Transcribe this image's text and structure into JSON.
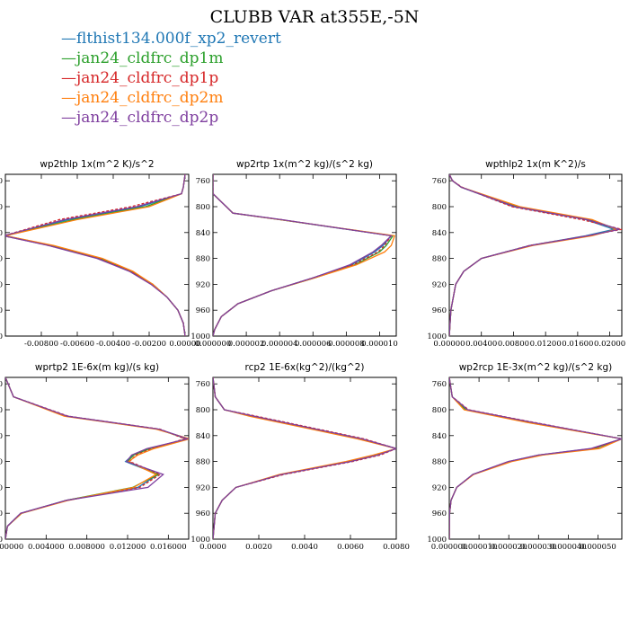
{
  "figure": {
    "title": "CLUBB VAR at355E,-5N"
  },
  "legend": [
    {
      "label": "flthist134.000f_xp2_revert",
      "color": "#1f77b4"
    },
    {
      "label": "jan24_cldfrc_dp1m",
      "color": "#2ca02c"
    },
    {
      "label": "jan24_cldfrc_dp1p",
      "color": "#d62728"
    },
    {
      "label": "jan24_cldfrc_dp2m",
      "color": "#ff7f0e"
    },
    {
      "label": "jan24_cldfrc_dp2p",
      "color": "#7f3f9f"
    }
  ],
  "chart_data": [
    {
      "type": "line",
      "title": "wp2thlp   1x(m^2 K)/s^2",
      "xlim": [
        -0.01,
        0.0002
      ],
      "ylim": [
        1000,
        750
      ],
      "xticks": [
        -0.008,
        -0.006,
        -0.004,
        -0.002,
        0.0
      ],
      "xtick_labels": [
        "-0.00800",
        "-0.00600",
        "-0.00400",
        "-0.00200",
        "0.00000"
      ],
      "yticks": [
        760,
        800,
        840,
        880,
        920,
        960,
        1000
      ],
      "y": [
        750,
        770,
        780,
        800,
        820,
        845,
        860,
        880,
        900,
        920,
        940,
        960,
        980,
        1000
      ],
      "series": [
        {
          "values": [
            0,
            -0.0001,
            -0.0002,
            -0.0025,
            -0.0065,
            -0.0101,
            -0.0075,
            -0.0048,
            -0.003,
            -0.0018,
            -0.001,
            -0.0004,
            -0.0001,
            0
          ]
        },
        {
          "values": [
            0,
            -0.0001,
            -0.0002,
            -0.0022,
            -0.0062,
            -0.01,
            -0.0074,
            -0.0047,
            -0.003,
            -0.0018,
            -0.001,
            -0.0004,
            -0.0001,
            0
          ]
        },
        {
          "values": [
            0,
            -0.0001,
            -0.0002,
            -0.003,
            -0.007,
            -0.0101,
            -0.0076,
            -0.0048,
            -0.003,
            -0.0018,
            -0.001,
            -0.0004,
            -0.0001,
            0
          ]
        },
        {
          "values": [
            0,
            -0.0001,
            -0.0002,
            -0.002,
            -0.006,
            -0.01,
            -0.0073,
            -0.0046,
            -0.0029,
            -0.0018,
            -0.001,
            -0.0004,
            -0.0001,
            0
          ]
        },
        {
          "values": [
            0,
            -0.0001,
            -0.0002,
            -0.0027,
            -0.0067,
            -0.0101,
            -0.0076,
            -0.0049,
            -0.0031,
            -0.0019,
            -0.001,
            -0.0004,
            -0.0001,
            0
          ]
        }
      ]
    },
    {
      "type": "line",
      "title": "wp2rtp   1x(m^2 kg)/(s^2 kg)",
      "xlim": [
        0.0,
        1.1e-05
      ],
      "ylim": [
        1000,
        750
      ],
      "xticks": [
        0.0,
        2e-06,
        4e-06,
        6e-06,
        8e-06,
        1e-05
      ],
      "xtick_labels": [
        "0.000000",
        "0.000002",
        "0.000004",
        "0.000006",
        "0.000008",
        "0.000010"
      ],
      "yticks": [
        760,
        800,
        840,
        880,
        920,
        960,
        1000
      ],
      "y": [
        750,
        780,
        800,
        810,
        820,
        845,
        860,
        870,
        890,
        910,
        930,
        950,
        970,
        990,
        1000
      ],
      "series": [
        {
          "values": [
            0,
            0,
            8e-07,
            1.2e-06,
            4e-06,
            1.07e-05,
            1.02e-05,
            9.7e-06,
            8.3e-06,
            6e-06,
            3.5e-06,
            1.5e-06,
            5e-07,
            1e-07,
            0
          ]
        },
        {
          "values": [
            0,
            0,
            8e-07,
            1.2e-06,
            4e-06,
            1.08e-05,
            1.04e-05,
            1e-05,
            8.5e-06,
            6.1e-06,
            3.5e-06,
            1.5e-06,
            5e-07,
            1e-07,
            0
          ]
        },
        {
          "values": [
            0,
            0,
            8e-07,
            1.2e-06,
            4.1e-06,
            1.07e-05,
            1.03e-05,
            9.9e-06,
            8.4e-06,
            6e-06,
            3.5e-06,
            1.5e-06,
            5e-07,
            1e-07,
            0
          ]
        },
        {
          "values": [
            0,
            0,
            8e-07,
            1.2e-06,
            4e-06,
            1.09e-05,
            1.07e-05,
            1.03e-05,
            8.6e-06,
            6.1e-06,
            3.5e-06,
            1.5e-06,
            5e-07,
            1e-07,
            0
          ]
        },
        {
          "values": [
            0,
            0,
            8e-07,
            1.2e-06,
            4.1e-06,
            1.07e-05,
            1.01e-05,
            9.6e-06,
            8.2e-06,
            6e-06,
            3.5e-06,
            1.5e-06,
            5e-07,
            1e-07,
            0
          ]
        }
      ]
    },
    {
      "type": "line",
      "title": "wpthlp2   1x(m K^2)/s",
      "xlim": [
        0.0,
        0.0215
      ],
      "ylim": [
        1000,
        750
      ],
      "xticks": [
        0.0,
        0.004,
        0.008,
        0.012,
        0.016,
        0.02
      ],
      "xtick_labels": [
        "0.00000",
        "0.00400",
        "0.00800",
        "0.01200",
        "0.01600",
        "0.02000"
      ],
      "yticks": [
        760,
        800,
        840,
        880,
        920,
        960,
        1000
      ],
      "y": [
        750,
        760,
        770,
        800,
        820,
        835,
        845,
        860,
        880,
        900,
        920,
        960,
        1000
      ],
      "series": [
        {
          "values": [
            0,
            0.0004,
            0.0015,
            0.008,
            0.017,
            0.0205,
            0.017,
            0.01,
            0.004,
            0.0018,
            0.0008,
            0.0002,
            0
          ]
        },
        {
          "values": [
            0,
            0.0004,
            0.0015,
            0.0085,
            0.0175,
            0.021,
            0.0175,
            0.0102,
            0.004,
            0.0018,
            0.0008,
            0.0002,
            0
          ]
        },
        {
          "values": [
            0,
            0.0004,
            0.0016,
            0.0078,
            0.0165,
            0.0215,
            0.0172,
            0.01,
            0.004,
            0.0018,
            0.0008,
            0.0002,
            0
          ]
        },
        {
          "values": [
            0,
            0.0004,
            0.0015,
            0.0088,
            0.0178,
            0.0208,
            0.0178,
            0.0104,
            0.004,
            0.0018,
            0.0008,
            0.0002,
            0
          ]
        },
        {
          "values": [
            0,
            0.0004,
            0.0015,
            0.0082,
            0.0172,
            0.0212,
            0.0173,
            0.0101,
            0.004,
            0.0018,
            0.0008,
            0.0002,
            0
          ]
        }
      ]
    },
    {
      "type": "line",
      "title": "wprtp2   1E-6x(m kg)/(s kg)",
      "xlim": [
        0.0,
        0.018
      ],
      "ylim": [
        1000,
        750
      ],
      "xticks": [
        0.0,
        0.004,
        0.008,
        0.012,
        0.016
      ],
      "xtick_labels": [
        "0.000000",
        "0.004000",
        "0.008000",
        "0.012000",
        "0.016000"
      ],
      "yticks": [
        760,
        800,
        840,
        880,
        920,
        960,
        1000
      ],
      "y": [
        750,
        780,
        810,
        830,
        845,
        860,
        870,
        880,
        900,
        920,
        940,
        960,
        980,
        1000
      ],
      "series": [
        {
          "values": [
            0,
            0.0008,
            0.006,
            0.015,
            0.018,
            0.014,
            0.0125,
            0.0118,
            0.015,
            0.013,
            0.006,
            0.0015,
            0.0002,
            0
          ]
        },
        {
          "values": [
            0,
            0.0008,
            0.006,
            0.015,
            0.0178,
            0.0142,
            0.0126,
            0.012,
            0.015,
            0.0125,
            0.006,
            0.0016,
            0.0002,
            0
          ]
        },
        {
          "values": [
            0,
            0.0008,
            0.0062,
            0.0152,
            0.0176,
            0.0144,
            0.0128,
            0.0122,
            0.0152,
            0.0132,
            0.006,
            0.0015,
            0.0002,
            0
          ]
        },
        {
          "values": [
            0,
            0.0008,
            0.0058,
            0.0148,
            0.0181,
            0.0146,
            0.013,
            0.0121,
            0.0148,
            0.0126,
            0.0062,
            0.0016,
            0.0002,
            0
          ]
        },
        {
          "values": [
            0,
            0.0008,
            0.0061,
            0.0151,
            0.0179,
            0.0139,
            0.0124,
            0.0119,
            0.0155,
            0.014,
            0.006,
            0.0015,
            0.0002,
            0
          ]
        }
      ]
    },
    {
      "type": "line",
      "title": "rcp2   1E-6x(kg^2)/(kg^2)",
      "xlim": [
        0.0,
        0.008
      ],
      "ylim": [
        1000,
        750
      ],
      "xticks": [
        0.0,
        0.002,
        0.004,
        0.006,
        0.008
      ],
      "xtick_labels": [
        "0.0000",
        "0.0020",
        "0.0040",
        "0.0060",
        "0.0080"
      ],
      "yticks": [
        760,
        800,
        840,
        880,
        920,
        960,
        1000
      ],
      "y": [
        750,
        780,
        800,
        810,
        830,
        845,
        860,
        870,
        880,
        900,
        920,
        940,
        960,
        1000
      ],
      "series": [
        {
          "values": [
            0,
            0.0001,
            0.0005,
            0.0018,
            0.0045,
            0.0065,
            0.008,
            0.0072,
            0.006,
            0.003,
            0.001,
            0.0004,
            0.0001,
            0
          ]
        },
        {
          "values": [
            0,
            0.0001,
            0.0005,
            0.0017,
            0.0044,
            0.0064,
            0.008,
            0.0071,
            0.0059,
            0.003,
            0.001,
            0.0004,
            0.0001,
            0
          ]
        },
        {
          "values": [
            0,
            0.0001,
            0.0005,
            0.0019,
            0.0046,
            0.0066,
            0.008,
            0.0073,
            0.0061,
            0.0031,
            0.001,
            0.0004,
            0.0001,
            0
          ]
        },
        {
          "values": [
            0,
            0.0001,
            0.0005,
            0.0016,
            0.0043,
            0.0063,
            0.008,
            0.007,
            0.0058,
            0.0029,
            0.001,
            0.0004,
            0.0001,
            0
          ]
        },
        {
          "values": [
            0,
            0.0001,
            0.0005,
            0.0018,
            0.0045,
            0.0065,
            0.008,
            0.0072,
            0.006,
            0.003,
            0.001,
            0.0004,
            0.0001,
            0
          ]
        }
      ]
    },
    {
      "type": "line",
      "title": "wp2rcp   1E-3x(m^2 kg)/(s^2 kg)",
      "xlim": [
        0.0,
        5.8e-05
      ],
      "ylim": [
        1000,
        750
      ],
      "xticks": [
        0.0,
        1e-05,
        2e-05,
        3e-05,
        4e-05,
        5e-05
      ],
      "xtick_labels": [
        "0.000000",
        "0.000010",
        "0.000020",
        "0.000030",
        "0.000040",
        "0.000050"
      ],
      "yticks": [
        760,
        800,
        840,
        880,
        920,
        960,
        1000
      ],
      "y": [
        750,
        780,
        800,
        820,
        845,
        860,
        870,
        880,
        900,
        920,
        940,
        960,
        1000
      ],
      "series": [
        {
          "values": [
            0,
            1e-06,
            6e-06,
            2.8e-05,
            5.8e-05,
            4.8e-05,
            3e-05,
            2e-05,
            8e-06,
            2.5e-06,
            6e-07,
            1e-07,
            0
          ]
        },
        {
          "values": [
            0,
            1e-06,
            5.5e-06,
            2.7e-05,
            5.8e-05,
            4.9e-05,
            3.1e-05,
            2.05e-05,
            8e-06,
            2.5e-06,
            6e-07,
            1e-07,
            0
          ]
        },
        {
          "values": [
            0,
            1e-06,
            6.5e-06,
            2.9e-05,
            5.8e-05,
            4.85e-05,
            3.05e-05,
            2e-05,
            8e-06,
            2.5e-06,
            6e-07,
            1e-07,
            0
          ]
        },
        {
          "values": [
            0,
            1e-06,
            5e-06,
            2.65e-05,
            5.8e-05,
            5.05e-05,
            3.15e-05,
            2.1e-05,
            8.2e-06,
            2.5e-06,
            6e-07,
            1e-07,
            0
          ]
        },
        {
          "values": [
            0,
            1e-06,
            6.2e-06,
            2.85e-05,
            5.8e-05,
            4.75e-05,
            3e-05,
            1.98e-05,
            7.9e-06,
            2.5e-06,
            6e-07,
            1e-07,
            0
          ]
        }
      ]
    }
  ]
}
